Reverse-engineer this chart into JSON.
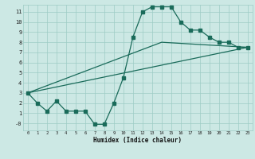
{
  "title": "",
  "xlabel": "Humidex (Indice chaleur)",
  "bg_color": "#cce8e4",
  "grid_color": "#9eccc5",
  "line_color": "#1a6b5a",
  "xlim": [
    -0.5,
    23.5
  ],
  "ylim": [
    -0.7,
    11.7
  ],
  "xticks": [
    0,
    1,
    2,
    3,
    4,
    5,
    6,
    7,
    8,
    9,
    10,
    11,
    12,
    13,
    14,
    15,
    16,
    17,
    18,
    19,
    20,
    21,
    22,
    23
  ],
  "yticks": [
    0,
    1,
    2,
    3,
    4,
    5,
    6,
    7,
    8,
    9,
    10,
    11
  ],
  "ytick_labels": [
    "-0",
    "1",
    "2",
    "3",
    "4",
    "5",
    "6",
    "7",
    "8",
    "9",
    "10",
    "11"
  ],
  "curve1_x": [
    0,
    1,
    2,
    3,
    4,
    5,
    6,
    7,
    8,
    9,
    10,
    11,
    12,
    13,
    14,
    15,
    16,
    17,
    18,
    19,
    20,
    21,
    22,
    23
  ],
  "curve1_y": [
    3.0,
    2.0,
    1.2,
    2.2,
    1.2,
    1.2,
    1.2,
    -0.1,
    -0.1,
    2.0,
    4.5,
    8.5,
    11.0,
    11.5,
    11.5,
    11.5,
    10.0,
    9.2,
    9.2,
    8.5,
    8.0,
    8.0,
    7.5,
    7.5
  ],
  "curve2_x": [
    0,
    23
  ],
  "curve2_y": [
    3.0,
    7.5
  ],
  "curve3_x": [
    0,
    14,
    23
  ],
  "curve3_y": [
    3.0,
    8.0,
    7.5
  ],
  "marker_size": 2.5,
  "linewidth": 0.9
}
